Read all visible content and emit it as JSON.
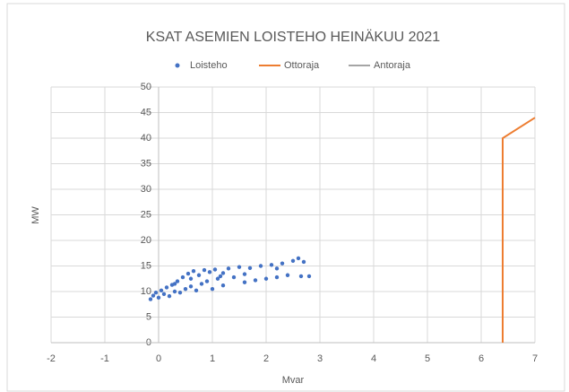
{
  "chart_data": {
    "type": "scatter",
    "title": "KSAT ASEMIEN LOISTEHO HEINÄKUU 2021",
    "x_label": "Mvar",
    "y_label": "MW",
    "xlim": [
      -2,
      7
    ],
    "xticks": [
      -2,
      -1,
      0,
      1,
      2,
      3,
      4,
      5,
      6,
      7
    ],
    "ylim": [
      0,
      50
    ],
    "yticks": [
      0,
      5,
      10,
      15,
      20,
      25,
      30,
      35,
      40,
      45,
      50
    ],
    "grid": true,
    "legend": "top",
    "series": [
      {
        "name": "Loisteho",
        "color": "#4472c4",
        "kind": "markers",
        "x": [
          -0.15,
          -0.1,
          -0.05,
          0,
          0.05,
          0.1,
          0.15,
          0.2,
          0.25,
          0.3,
          0.35,
          0.4,
          0.45,
          0.5,
          0.55,
          0.6,
          0.65,
          0.7,
          0.75,
          0.8,
          0.85,
          0.9,
          0.95,
          1.0,
          1.05,
          1.1,
          1.15,
          1.2,
          1.3,
          1.4,
          1.5,
          1.6,
          1.7,
          1.8,
          1.9,
          2.0,
          2.1,
          2.2,
          2.3,
          2.4,
          2.5,
          2.6,
          2.65,
          2.7,
          2.8,
          0.3,
          0.6,
          1.2,
          1.6,
          2.2
        ],
        "y": [
          8.5,
          9.2,
          9.8,
          8.8,
          10.2,
          9.5,
          10.8,
          9.1,
          11.3,
          10.0,
          12.0,
          9.8,
          12.8,
          10.5,
          13.5,
          11.0,
          14.0,
          10.2,
          13.2,
          11.5,
          14.2,
          12.0,
          13.8,
          10.5,
          14.3,
          12.5,
          13.0,
          11.2,
          14.5,
          12.8,
          14.8,
          11.8,
          14.6,
          12.2,
          15.0,
          12.5,
          15.2,
          12.8,
          15.5,
          13.2,
          16.0,
          16.5,
          13.0,
          15.8,
          13.0,
          11.5,
          12.5,
          13.6,
          13.4,
          14.5
        ]
      },
      {
        "name": "Ottoraja",
        "color": "#ed7d31",
        "kind": "line",
        "x": [
          6.4,
          6.4,
          7
        ],
        "y": [
          0,
          40,
          44
        ]
      },
      {
        "name": "Antoraja",
        "color": "#a5a5a5",
        "kind": "line",
        "x": [],
        "y": []
      }
    ]
  }
}
